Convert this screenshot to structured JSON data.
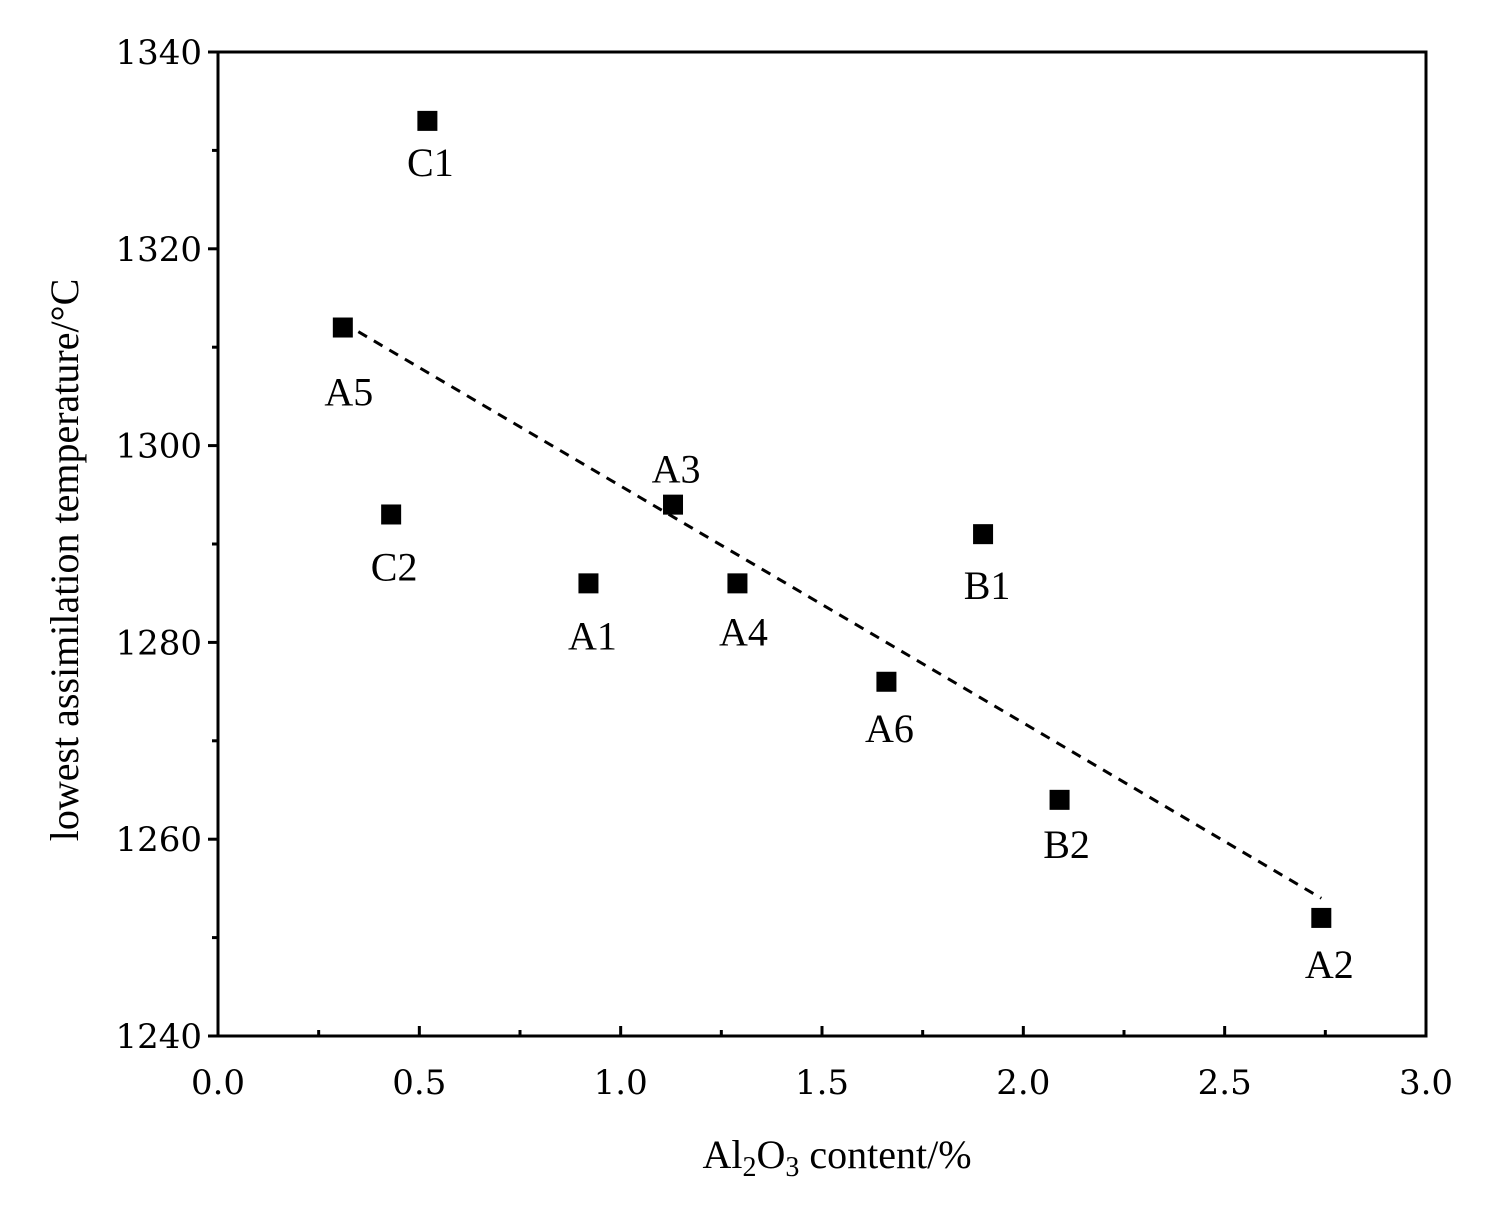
{
  "chart_data": {
    "type": "scatter",
    "title": "",
    "xlabel": {
      "main": "Al",
      "sub1": "2",
      "mid": "O",
      "sub2": "3",
      "tail": " content/%"
    },
    "ylabel": "lowest assimilation temperature/°C",
    "xlim": [
      0.0,
      3.0
    ],
    "ylim": [
      1240,
      1340
    ],
    "xticks": [
      "0.0",
      "0.5",
      "1.0",
      "1.5",
      "2.0",
      "2.5",
      "3.0"
    ],
    "yticks": [
      "1240",
      "1260",
      "1280",
      "1300",
      "1320",
      "1340"
    ],
    "points": [
      {
        "label": "C1",
        "x": 0.52,
        "y": 1333
      },
      {
        "label": "A5",
        "x": 0.31,
        "y": 1312
      },
      {
        "label": "C2",
        "x": 0.43,
        "y": 1293
      },
      {
        "label": "A3",
        "x": 1.13,
        "y": 1294
      },
      {
        "label": "A1",
        "x": 0.92,
        "y": 1286
      },
      {
        "label": "A4",
        "x": 1.29,
        "y": 1286
      },
      {
        "label": "B1",
        "x": 1.9,
        "y": 1291
      },
      {
        "label": "A6",
        "x": 1.66,
        "y": 1276
      },
      {
        "label": "B2",
        "x": 2.09,
        "y": 1264
      },
      {
        "label": "A2",
        "x": 2.74,
        "y": 1252
      }
    ],
    "trendline": {
      "style": "dashed",
      "x": [
        0.31,
        2.74
      ],
      "y": [
        1312.5,
        1254
      ]
    },
    "grid": false,
    "legend": "none",
    "marker": "square",
    "colors": {
      "marker": "#000000",
      "axis": "#000000",
      "trendline": "#000000"
    }
  }
}
